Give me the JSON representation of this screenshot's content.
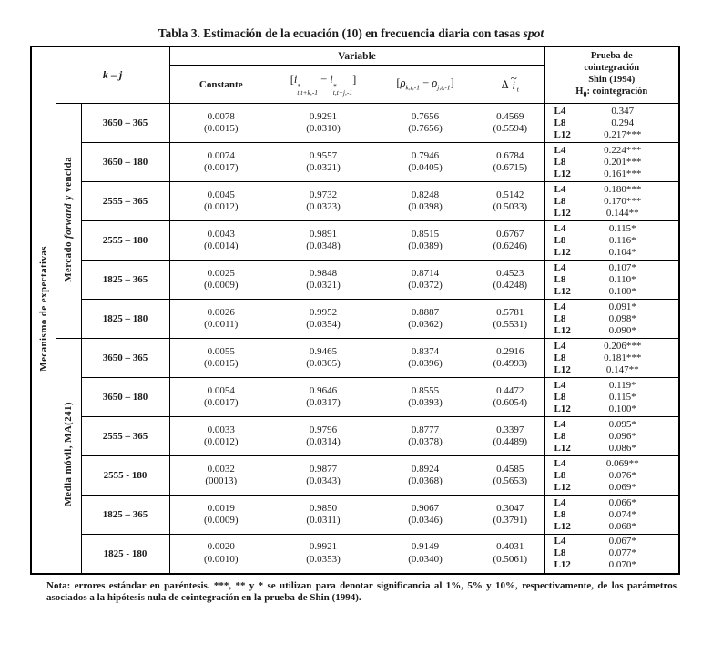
{
  "title_html": "Tabla 3. Estimación de la ecuación (10) en frecuencia diaria con tasas <i>spot</i>",
  "left_label": "Mecanismo de expectativas",
  "header": {
    "kj_html": "<i>k</i> – <i>j</i>",
    "variable": "Variable",
    "constante": "Constante",
    "eq_i_html": "[<i>i</i><span class=\"ss\"><span>*</span><span>t,t+k,-1</span></span> − <i>i</i><span class=\"ss\"><span>*</span><span>t,t+j,-1</span></span>]",
    "eq_rho_html": "[<i>ρ</i><sub>k,t,-1</sub> − <i>ρ</i><sub>j,t,-1</sub>]",
    "eq_di_html": "Δ<span class=\"ti\"><span class=\"tt\">~</span><span class=\"tb\">i</span></span><sub>t</sub>",
    "prueba_html": "Prueba de<br>cointegración<br>Shin (1994)<br>H<sub>0</sub>: cointegración"
  },
  "groups": [
    {
      "label_html": "Mercado <i>forward</i> y vencida",
      "rows": [
        {
          "kj": "3650 – 365",
          "values": [
            [
              "0.0078",
              "(0.0015)"
            ],
            [
              "0.9291",
              "(0.0310)"
            ],
            [
              "0.7656",
              "(0.7656)"
            ],
            [
              "0.4569",
              "(0.5594)"
            ]
          ],
          "shin": [
            [
              "L4",
              "0.347"
            ],
            [
              "L8",
              "0.294"
            ],
            [
              "L12",
              "0.217***"
            ]
          ]
        },
        {
          "kj": "3650 – 180",
          "values": [
            [
              "0.0074",
              "(0.0017)"
            ],
            [
              "0.9557",
              "(0.0321)"
            ],
            [
              "0.7946",
              "(0.0405)"
            ],
            [
              "0.6784",
              "(0.6715)"
            ]
          ],
          "shin": [
            [
              "L4",
              "0.224***"
            ],
            [
              "L8",
              "0.201***"
            ],
            [
              "L12",
              "0.161***"
            ]
          ]
        },
        {
          "kj": "2555 – 365",
          "values": [
            [
              "0.0045",
              "(0.0012)"
            ],
            [
              "0.9732",
              "(0.0323)"
            ],
            [
              "0.8248",
              "(0.0398)"
            ],
            [
              "0.5142",
              "(0.5033)"
            ]
          ],
          "shin": [
            [
              "L4",
              "0.180***"
            ],
            [
              "L8",
              "0.170***"
            ],
            [
              "L12",
              "0.144**"
            ]
          ]
        },
        {
          "kj": "2555 – 180",
          "values": [
            [
              "0.0043",
              "(0.0014)"
            ],
            [
              "0.9891",
              "(0.0348)"
            ],
            [
              "0.8515",
              "(0.0389)"
            ],
            [
              "0.6767",
              "(0.6246)"
            ]
          ],
          "shin": [
            [
              "L4",
              "0.115*"
            ],
            [
              "L8",
              "0.116*"
            ],
            [
              "L12",
              "0.104*"
            ]
          ]
        },
        {
          "kj": "1825 – 365",
          "values": [
            [
              "0.0025",
              "(0.0009)"
            ],
            [
              "0.9848",
              "(0.0321)"
            ],
            [
              "0.8714",
              "(0.0372)"
            ],
            [
              "0.4523",
              "(0.4248)"
            ]
          ],
          "shin": [
            [
              "L4",
              "0.107*"
            ],
            [
              "L8",
              "0.110*"
            ],
            [
              "L12",
              "0.100*"
            ]
          ]
        },
        {
          "kj": "1825 – 180",
          "values": [
            [
              "0.0026",
              "(0.0011)"
            ],
            [
              "0.9952",
              "(0.0354)"
            ],
            [
              "0.8887",
              "(0.0362)"
            ],
            [
              "0.5781",
              "(0.5531)"
            ]
          ],
          "shin": [
            [
              "L4",
              "0.091*"
            ],
            [
              "L8",
              "0.098*"
            ],
            [
              "L12",
              "0.090*"
            ]
          ]
        }
      ]
    },
    {
      "label_html": "Media móvil, MA(241)",
      "rows": [
        {
          "kj": "3650 – 365",
          "values": [
            [
              "0.0055",
              "(0.0015)"
            ],
            [
              "0.9465",
              "(0.0305)"
            ],
            [
              "0.8374",
              "(0.0396)"
            ],
            [
              "0.2916",
              "(0.4993)"
            ]
          ],
          "shin": [
            [
              "L4",
              "0.206***"
            ],
            [
              "L8",
              "0.181***"
            ],
            [
              "L12",
              "0.147**"
            ]
          ]
        },
        {
          "kj": "3650 – 180",
          "values": [
            [
              "0.0054",
              "(0.0017)"
            ],
            [
              "0.9646",
              "(0.0317)"
            ],
            [
              "0.8555",
              "(0.0393)"
            ],
            [
              "0.4472",
              "(0.6054)"
            ]
          ],
          "shin": [
            [
              "L4",
              "0.119*"
            ],
            [
              "L8",
              "0.115*"
            ],
            [
              "L12",
              "0.100*"
            ]
          ]
        },
        {
          "kj": "2555 – 365",
          "values": [
            [
              "0.0033",
              "(0.0012)"
            ],
            [
              "0.9796",
              "(0.0314)"
            ],
            [
              "0.8777",
              "(0.0378)"
            ],
            [
              "0.3397",
              "(0.4489)"
            ]
          ],
          "shin": [
            [
              "L4",
              "0.095*"
            ],
            [
              "L8",
              "0.096*"
            ],
            [
              "L12",
              "0.086*"
            ]
          ]
        },
        {
          "kj": "2555 - 180",
          "values": [
            [
              "0.0032",
              "(00013)"
            ],
            [
              "0.9877",
              "(0.0343)"
            ],
            [
              "0.8924",
              "(0.0368)"
            ],
            [
              "0.4585",
              "(0.5653)"
            ]
          ],
          "shin": [
            [
              "L4",
              "0.069**"
            ],
            [
              "L8",
              "0.076*"
            ],
            [
              "L12",
              "0.069*"
            ]
          ]
        },
        {
          "kj": "1825 – 365",
          "values": [
            [
              "0.0019",
              "(0.0009)"
            ],
            [
              "0.9850",
              "(0.0311)"
            ],
            [
              "0.9067",
              "(0.0346)"
            ],
            [
              "0.3047",
              "(0.3791)"
            ]
          ],
          "shin": [
            [
              "L4",
              "0.066*"
            ],
            [
              "L8",
              "0.074*"
            ],
            [
              "L12",
              "0.068*"
            ]
          ]
        },
        {
          "kj": "1825 - 180",
          "values": [
            [
              "0.0020",
              "(0.0010)"
            ],
            [
              "0.9921",
              "(0.0353)"
            ],
            [
              "0.9149",
              "(0.0340)"
            ],
            [
              "0.4031",
              "(0.5061)"
            ]
          ],
          "shin": [
            [
              "L4",
              "0.067*"
            ],
            [
              "L8",
              "0.077*"
            ],
            [
              "L12",
              "0.070*"
            ]
          ]
        }
      ]
    }
  ],
  "note": "Nota: errores estándar en paréntesis. ***, ** y * se utilizan para denotar significancia al 1%, 5% y 10%, respectivamente, de los parámetros asociados a la hipótesis nula de cointegración en la prueba de Shin (1994)."
}
